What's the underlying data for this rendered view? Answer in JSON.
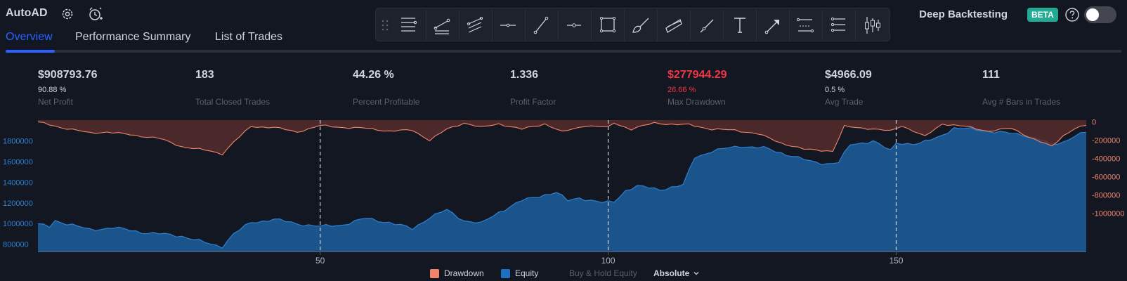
{
  "header": {
    "title": "AutoAD",
    "icons": [
      "gear-icon",
      "alarm-add-icon"
    ]
  },
  "tabs": [
    {
      "label": "Overview",
      "active": true
    },
    {
      "label": "Performance Summary",
      "active": false
    },
    {
      "label": "List of Trades",
      "active": false
    }
  ],
  "toolbar": {
    "tools": [
      "horizontal-lines-icon",
      "parallel-channel-icon",
      "disjoint-channel-icon",
      "horizontal-line-icon",
      "trend-line-icon",
      "horizontal-ray-icon",
      "rectangle-icon",
      "brush-icon",
      "flat-top-icon",
      "ray-icon",
      "text-icon",
      "arrow-icon",
      "price-range-icon",
      "date-range-icon",
      "candles-icon"
    ]
  },
  "deep_backtesting": {
    "label": "Deep Backtesting",
    "badge": "BETA",
    "enabled": false
  },
  "metrics": [
    {
      "value": "$908793.76",
      "sub": "90.88 %",
      "label": "Net Profit",
      "negative": false
    },
    {
      "value": "183",
      "sub": "",
      "label": "Total Closed Trades",
      "negative": false
    },
    {
      "value": "44.26 %",
      "sub": "",
      "label": "Percent Profitable",
      "negative": false
    },
    {
      "value": "1.336",
      "sub": "",
      "label": "Profit Factor",
      "negative": false
    },
    {
      "value": "$277944.29",
      "sub": "26.66 %",
      "label": "Max Drawdown",
      "negative": true
    },
    {
      "value": "$4966.09",
      "sub": "0.5 %",
      "label": "Avg Trade",
      "negative": false
    },
    {
      "value": "111",
      "sub": "",
      "label": "Avg # Bars in Trades",
      "negative": false
    }
  ],
  "legend": {
    "drawdown": "Drawdown",
    "equity": "Equity",
    "buy_hold": "Buy & Hold Equity",
    "mode": "Absolute"
  },
  "colors": {
    "accent": "#2962ff",
    "equity": "#1c5f9e",
    "equity_line": "#2f7fd0",
    "drawdown": "#f0856b",
    "negative": "#f23645"
  },
  "chart_data": {
    "type": "area",
    "xlim": [
      1,
      183
    ],
    "x_ticks": [
      50,
      100,
      150
    ],
    "y_left": {
      "lim": [
        730000,
        2000000
      ],
      "ticks": [
        800000,
        1000000,
        1200000,
        1400000,
        1600000,
        1800000
      ]
    },
    "y_right": {
      "lim": [
        -1420000,
        20000
      ],
      "ticks": [
        0,
        -200000,
        -400000,
        -600000,
        -800000,
        -1000000
      ]
    },
    "grid": false,
    "legend_placement": "bottom-center",
    "series": [
      {
        "name": "Equity",
        "axis": "left",
        "keypoints": [
          [
            1,
            990000
          ],
          [
            3,
            970000
          ],
          [
            4,
            1030000
          ],
          [
            10,
            940000
          ],
          [
            14,
            960000
          ],
          [
            20,
            910000
          ],
          [
            26,
            880000
          ],
          [
            29,
            830000
          ],
          [
            31,
            800000
          ],
          [
            33,
            780000
          ],
          [
            35,
            900000
          ],
          [
            38,
            1010000
          ],
          [
            42,
            1040000
          ],
          [
            46,
            1000000
          ],
          [
            50,
            970000
          ],
          [
            54,
            990000
          ],
          [
            58,
            1050000
          ],
          [
            62,
            1010000
          ],
          [
            66,
            950000
          ],
          [
            69,
            1060000
          ],
          [
            72,
            1130000
          ],
          [
            75,
            1030000
          ],
          [
            78,
            1000000
          ],
          [
            81,
            1110000
          ],
          [
            85,
            1220000
          ],
          [
            89,
            1280000
          ],
          [
            91,
            1300000
          ],
          [
            93,
            1220000
          ],
          [
            95,
            1250000
          ],
          [
            99,
            1200000
          ],
          [
            101,
            1210000
          ],
          [
            103,
            1320000
          ],
          [
            105,
            1360000
          ],
          [
            109,
            1330000
          ],
          [
            112,
            1360000
          ],
          [
            113,
            1370000
          ],
          [
            115,
            1640000
          ],
          [
            118,
            1700000
          ],
          [
            123,
            1750000
          ],
          [
            127,
            1730000
          ],
          [
            131,
            1670000
          ],
          [
            135,
            1600000
          ],
          [
            138,
            1580000
          ],
          [
            140,
            1590000
          ],
          [
            142,
            1760000
          ],
          [
            146,
            1800000
          ],
          [
            149,
            1700000
          ],
          [
            150,
            1780000
          ],
          [
            154,
            1770000
          ],
          [
            157,
            1830000
          ],
          [
            160,
            1920000
          ],
          [
            164,
            1910000
          ],
          [
            168,
            1880000
          ],
          [
            172,
            1860000
          ],
          [
            175,
            1810000
          ],
          [
            177,
            1760000
          ],
          [
            179,
            1790000
          ],
          [
            181,
            1850000
          ],
          [
            183,
            1880000
          ]
        ]
      },
      {
        "name": "Drawdown",
        "axis": "right",
        "keypoints": [
          [
            1,
            0
          ],
          [
            5,
            -60000
          ],
          [
            10,
            -120000
          ],
          [
            13,
            -110000
          ],
          [
            17,
            -140000
          ],
          [
            22,
            -180000
          ],
          [
            26,
            -270000
          ],
          [
            31,
            -320000
          ],
          [
            33,
            -350000
          ],
          [
            35,
            -220000
          ],
          [
            38,
            -50000
          ],
          [
            42,
            -60000
          ],
          [
            46,
            -110000
          ],
          [
            50,
            -40000
          ],
          [
            54,
            -60000
          ],
          [
            58,
            -70000
          ],
          [
            62,
            -100000
          ],
          [
            66,
            -90000
          ],
          [
            69,
            -200000
          ],
          [
            72,
            -80000
          ],
          [
            75,
            -10000
          ],
          [
            78,
            -60000
          ],
          [
            81,
            -20000
          ],
          [
            85,
            -80000
          ],
          [
            89,
            -20000
          ],
          [
            92,
            -110000
          ],
          [
            96,
            -40000
          ],
          [
            100,
            -60000
          ],
          [
            101,
            -10000
          ],
          [
            104,
            -80000
          ],
          [
            108,
            -10000
          ],
          [
            112,
            -30000
          ],
          [
            114,
            -30000
          ],
          [
            118,
            -80000
          ],
          [
            122,
            -90000
          ],
          [
            126,
            -130000
          ],
          [
            130,
            -230000
          ],
          [
            134,
            -300000
          ],
          [
            137,
            -310000
          ],
          [
            139,
            -320000
          ],
          [
            141,
            -50000
          ],
          [
            145,
            -70000
          ],
          [
            149,
            -100000
          ],
          [
            151,
            -40000
          ],
          [
            155,
            -160000
          ],
          [
            158,
            -20000
          ],
          [
            162,
            -50000
          ],
          [
            166,
            -100000
          ],
          [
            170,
            -70000
          ],
          [
            174,
            -190000
          ],
          [
            177,
            -270000
          ],
          [
            179,
            -150000
          ],
          [
            181,
            -70000
          ],
          [
            183,
            -40000
          ]
        ]
      }
    ]
  }
}
